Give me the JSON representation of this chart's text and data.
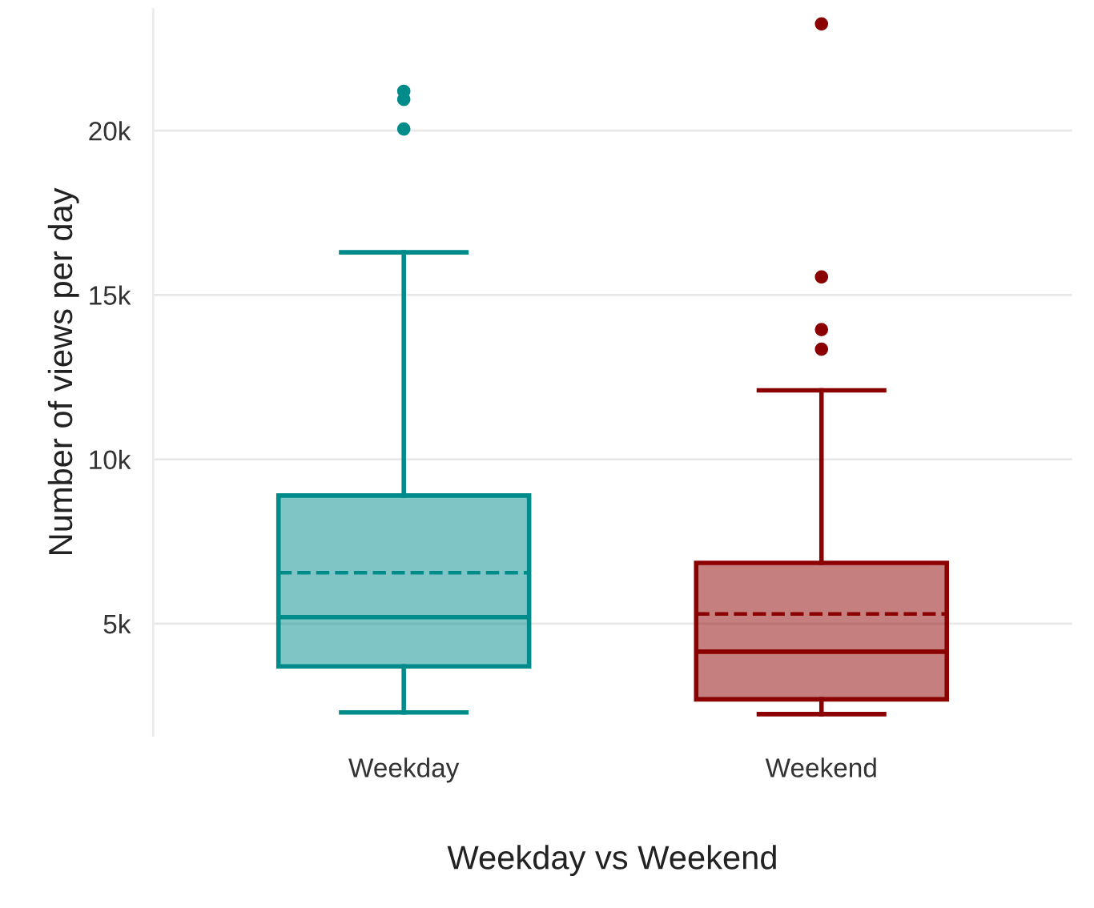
{
  "chart_data": {
    "type": "box",
    "xlabel": "Weekday vs Weekend",
    "ylabel": "Number of views per day",
    "categories": [
      "Weekday",
      "Weekend"
    ],
    "series": [
      {
        "color": "#008b8b",
        "boxes": [
          {
            "low": 2300,
            "q1": 3700,
            "median": 5200,
            "q3": 8900,
            "high": 16300,
            "mean": 6550,
            "outliers": [
              21200,
              20950,
              20050
            ]
          },
          null
        ]
      },
      {
        "color": "#8b0000",
        "boxes": [
          null,
          {
            "low": 2250,
            "q1": 2700,
            "median": 4150,
            "q3": 6850,
            "high": 12100,
            "mean": 5300,
            "outliers": [
              23250,
              15550,
              13950,
              13350
            ]
          }
        ]
      }
    ],
    "ylim": [
      1600,
      23700
    ],
    "yticks": [
      {
        "value": 5000,
        "label": "5k"
      },
      {
        "value": 10000,
        "label": "10k"
      },
      {
        "value": 15000,
        "label": "15k"
      },
      {
        "value": 20000,
        "label": "20k"
      }
    ],
    "grid": "y"
  }
}
